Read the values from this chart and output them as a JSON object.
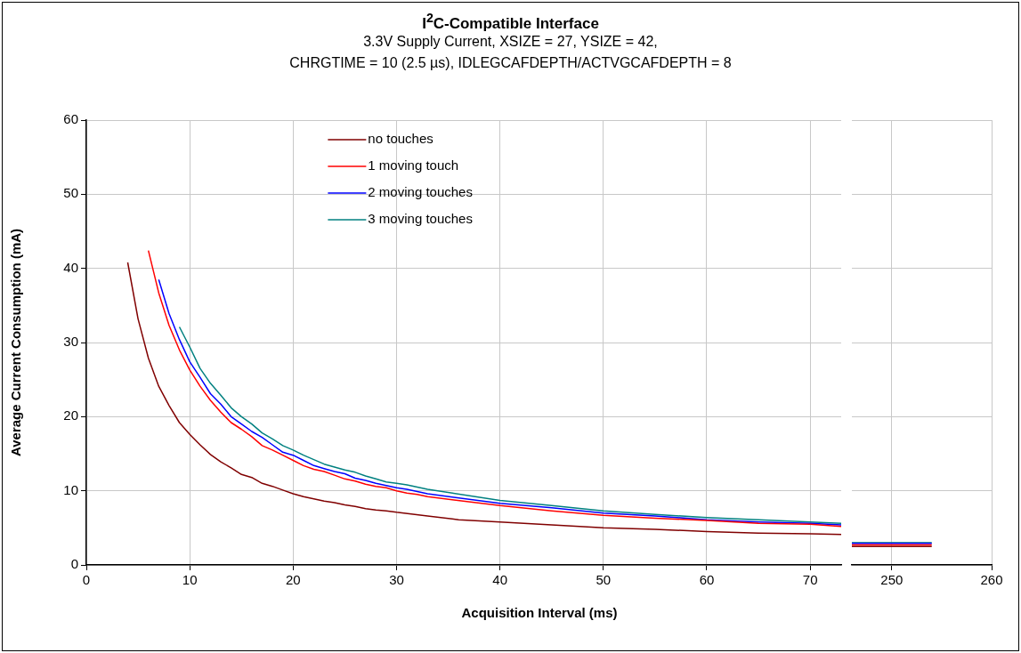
{
  "chart_data": [
    {
      "type": "line",
      "title": "I$^{2}$C-Compatible Interface",
      "subtitle": "3.3V Supply Current, XSIZE = 27, YSIZE = 42,\nCHRGTIME = 10 (2.5 µs), IDLEGCAFDEPTH/ACTVGCAFDEPTH = 8",
      "xlabel": "Acquisition Interval (ms)",
      "ylabel": "Average Current Consumption (mA)",
      "xlim": [
        0,
        73
      ],
      "xticks": [
        0,
        10,
        20,
        30,
        40,
        50,
        60,
        70
      ],
      "ylim": [
        0,
        60
      ],
      "yticks": [
        0,
        10,
        20,
        30,
        40,
        50,
        60
      ],
      "grid": true,
      "legend": "top",
      "marker": "none",
      "line_style": "solid",
      "series": [
        {
          "name": "no touches",
          "color": "#800000",
          "x": [
            4,
            5,
            6,
            7,
            8,
            9,
            10,
            11,
            12,
            13,
            14,
            15,
            16,
            17,
            18,
            19,
            20,
            21,
            22,
            23,
            24,
            25,
            26,
            27,
            28,
            29,
            30,
            33,
            36,
            40,
            45,
            50,
            55,
            60,
            65,
            70,
            73
          ],
          "values": [
            40.8,
            33.2,
            27.9,
            24.1,
            21.5,
            19.2,
            17.6,
            16.2,
            14.9,
            13.9,
            13.1,
            12.2,
            11.8,
            11.0,
            10.6,
            10.1,
            9.6,
            9.2,
            8.9,
            8.6,
            8.4,
            8.1,
            7.9,
            7.6,
            7.4,
            7.3,
            7.1,
            6.6,
            6.1,
            5.8,
            5.4,
            5.0,
            4.8,
            4.5,
            4.3,
            4.2,
            4.1
          ]
        },
        {
          "name": "1 moving touch",
          "color": "#ff0000",
          "x": [
            6,
            7,
            8,
            9,
            10,
            11,
            12,
            13,
            14,
            15,
            16,
            17,
            18,
            19,
            20,
            21,
            22,
            23,
            24,
            25,
            26,
            27,
            28,
            29,
            30,
            31,
            32,
            33,
            40,
            45,
            50,
            55,
            60,
            65,
            70,
            73
          ],
          "values": [
            42.4,
            36.7,
            32.3,
            29.0,
            26.3,
            24.1,
            22.2,
            20.6,
            19.2,
            18.3,
            17.3,
            16.1,
            15.5,
            14.8,
            14.1,
            13.4,
            12.9,
            12.6,
            12.1,
            11.6,
            11.3,
            10.9,
            10.6,
            10.4,
            10.0,
            9.7,
            9.5,
            9.2,
            8.0,
            7.3,
            6.7,
            6.3,
            6.0,
            5.6,
            5.5,
            5.2
          ]
        },
        {
          "name": "2 moving touches",
          "color": "#0000ff",
          "x": [
            7,
            8,
            9,
            10,
            11,
            12,
            13,
            14,
            15,
            16,
            17,
            18,
            19,
            20,
            21,
            22,
            23,
            24,
            25,
            26,
            27,
            28,
            29,
            30,
            31,
            32,
            33,
            40,
            45,
            50,
            55,
            60,
            65,
            70,
            73
          ],
          "values": [
            38.5,
            33.9,
            30.4,
            27.4,
            25.3,
            23.1,
            21.7,
            20.0,
            19.0,
            18.0,
            17.2,
            16.2,
            15.2,
            14.8,
            14.1,
            13.4,
            13.0,
            12.6,
            12.3,
            11.7,
            11.4,
            11.0,
            10.7,
            10.4,
            10.2,
            9.9,
            9.6,
            8.3,
            7.7,
            7.0,
            6.6,
            6.1,
            5.8,
            5.6,
            5.4
          ]
        },
        {
          "name": "3 moving touches",
          "color": "#008080",
          "x": [
            9,
            10,
            11,
            12,
            13,
            14,
            15,
            16,
            17,
            18,
            19,
            20,
            21,
            22,
            23,
            24,
            25,
            26,
            27,
            28,
            29,
            30,
            31,
            32,
            33,
            40,
            45,
            50,
            55,
            60,
            65,
            70,
            73
          ],
          "values": [
            32.1,
            29.4,
            26.5,
            24.5,
            22.9,
            21.2,
            20.0,
            19.0,
            17.8,
            17.0,
            16.1,
            15.5,
            14.8,
            14.2,
            13.6,
            13.2,
            12.8,
            12.5,
            12.0,
            11.6,
            11.2,
            11.0,
            10.8,
            10.5,
            10.2,
            8.7,
            8.0,
            7.3,
            6.8,
            6.4,
            6.1,
            5.8,
            5.6
          ]
        }
      ]
    },
    {
      "type": "line",
      "xlim": [
        246,
        260
      ],
      "xticks": [
        250,
        260
      ],
      "ylim": [
        0,
        60
      ],
      "yticks": [
        0,
        10,
        20,
        30,
        40,
        50,
        60
      ],
      "grid": true,
      "tick_labels": "x",
      "marker": "none",
      "line_style": "solid",
      "series": [
        {
          "color": "#800000",
          "x": [
            246,
            254
          ],
          "values": [
            2.5,
            2.5
          ]
        },
        {
          "color": "#ff0000",
          "x": [
            246,
            254
          ],
          "values": [
            2.7,
            2.7
          ]
        },
        {
          "color": "#0000ff",
          "x": [
            246,
            254
          ],
          "values": [
            2.9,
            2.9
          ]
        },
        {
          "color": "#008080",
          "x": [
            246,
            254
          ],
          "values": [
            3.0,
            3.0
          ]
        }
      ]
    }
  ]
}
